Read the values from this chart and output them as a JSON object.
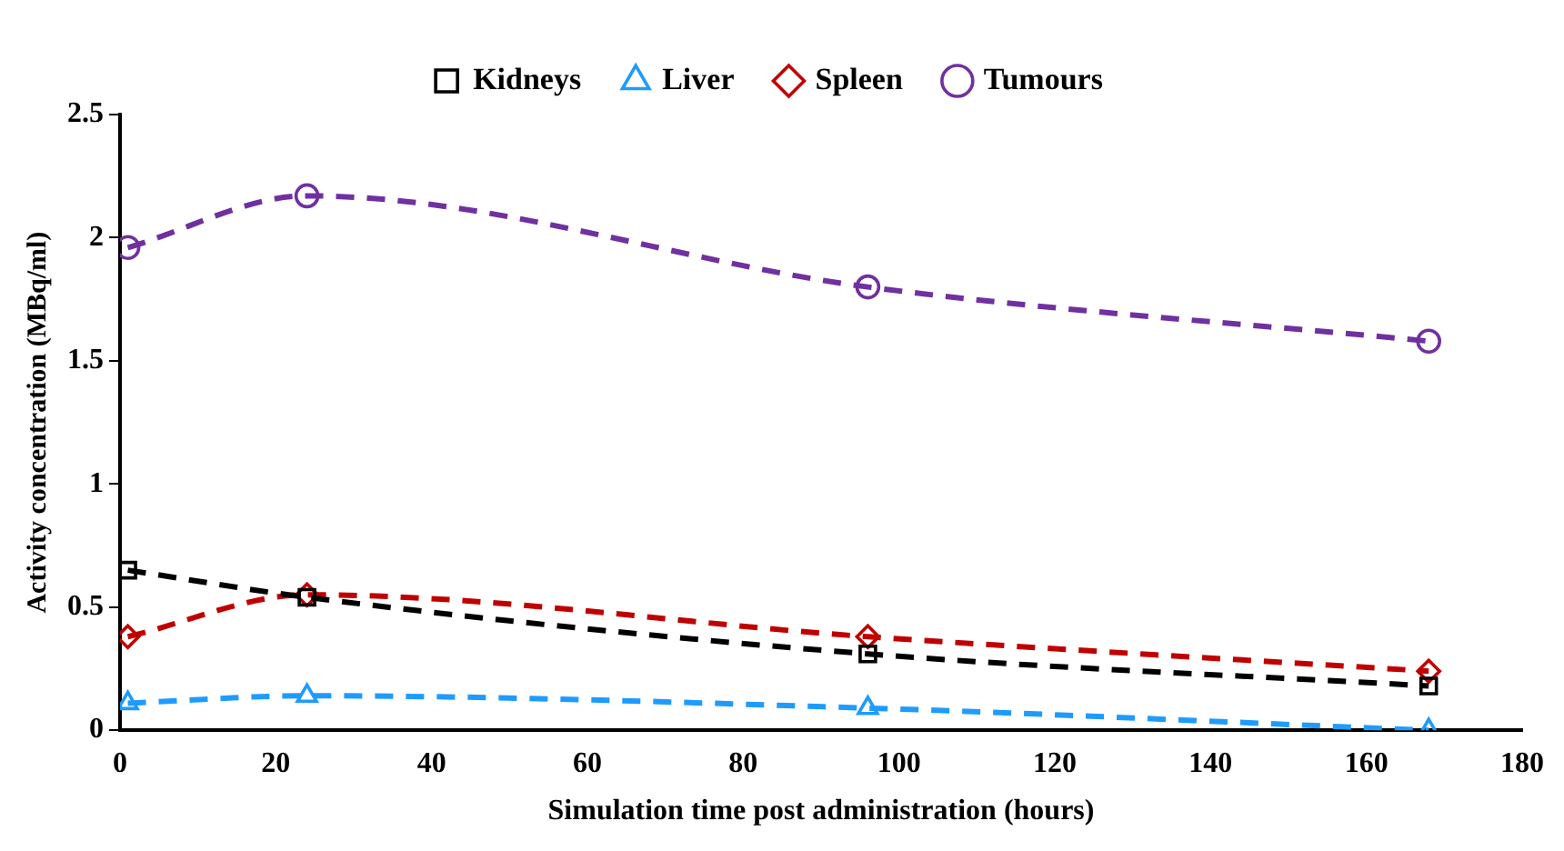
{
  "chart_data": {
    "type": "line",
    "xlabel": "Simulation time post administration (hours)",
    "ylabel": "Activity concentration (MBq/ml)",
    "x": [
      1,
      24,
      96,
      168
    ],
    "series": [
      {
        "name": "Kidneys",
        "color": "#000000",
        "marker": "square",
        "values": [
          0.65,
          0.54,
          0.31,
          0.18
        ]
      },
      {
        "name": "Liver",
        "color": "#1e9bff",
        "marker": "triangle",
        "values": [
          0.11,
          0.14,
          0.09,
          0.0
        ]
      },
      {
        "name": "Spleen",
        "color": "#c00000",
        "marker": "diamond",
        "values": [
          0.38,
          0.55,
          0.38,
          0.24
        ]
      },
      {
        "name": "Tumours",
        "color": "#7030a0",
        "marker": "circle",
        "values": [
          1.96,
          2.17,
          1.8,
          1.58
        ]
      }
    ],
    "xlim": [
      0,
      180
    ],
    "xticks": [
      0,
      20,
      40,
      60,
      80,
      100,
      120,
      140,
      160,
      180
    ],
    "ylim": [
      0,
      2.5
    ],
    "yticks": [
      0,
      0.5,
      1,
      1.5,
      2,
      2.5
    ],
    "grid": false,
    "legend": "top",
    "line_style": "dashed"
  }
}
